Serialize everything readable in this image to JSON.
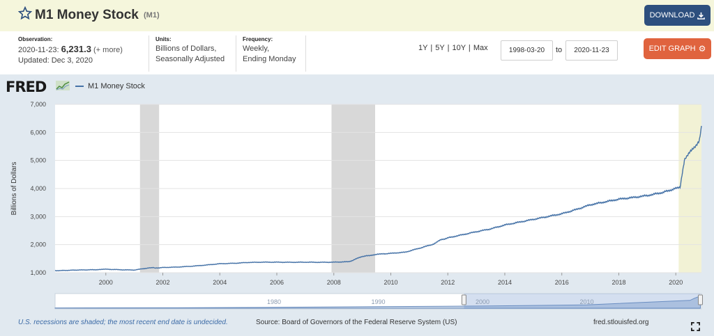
{
  "header": {
    "title": "M1 Money Stock",
    "code": "(M1)",
    "download_label": "DOWNLOAD",
    "icons": {
      "star": "star-outline-icon",
      "download": "download-icon",
      "edit": "gear-icon",
      "fullscreen": "fullscreen-icon"
    }
  },
  "meta": {
    "observation_label": "Observation:",
    "observation_date": "2020-11-23:",
    "observation_value": "6,231.3",
    "observation_more": "(+ more)",
    "updated": "Updated: Dec 3, 2020",
    "units_label": "Units:",
    "units_line1": "Billions of Dollars,",
    "units_line2": "Seasonally Adjusted",
    "frequency_label": "Frequency:",
    "frequency_line1": "Weekly,",
    "frequency_line2": "Ending Monday"
  },
  "controls": {
    "ranges": [
      "1Y",
      "5Y",
      "10Y",
      "Max"
    ],
    "start_date": "1998-03-20",
    "to_label": "to",
    "end_date": "2020-11-23",
    "edit_label": "EDIT GRAPH"
  },
  "graph": {
    "logo": "FRED",
    "legend": "M1 Money Stock",
    "footnote": "U.S. recessions are shaded; the most recent end date is undecided.",
    "source": "Source: Board of Governors of the Federal Reserve System (US)",
    "url": "fred.stlouisfed.org",
    "navigator_labels": [
      "1980",
      "1990",
      "2000",
      "2010"
    ]
  },
  "colors": {
    "line": "#4572a7",
    "recession": "#d8d8d8",
    "recent_band": "#f2f2d5",
    "title_bar": "#f5f6dc",
    "download_button": "#2d4f7e",
    "edit_button": "#e0633e",
    "panel": "#e1e9f0"
  },
  "chart_data": {
    "type": "line",
    "title": "",
    "xlabel": "",
    "ylabel": "Billions of Dollars",
    "ylim": [
      1000,
      7000
    ],
    "xlim": [
      1998.22,
      2020.9
    ],
    "yticks": [
      1000,
      2000,
      3000,
      4000,
      5000,
      6000,
      7000
    ],
    "ytick_labels": [
      "1,000",
      "2,000",
      "3,000",
      "4,000",
      "5,000",
      "6,000",
      "7,000"
    ],
    "xticks": [
      2000,
      2002,
      2004,
      2006,
      2008,
      2010,
      2012,
      2014,
      2016,
      2018,
      2020
    ],
    "xtick_labels": [
      "2000",
      "2002",
      "2004",
      "2006",
      "2008",
      "2010",
      "2012",
      "2014",
      "2016",
      "2018",
      "2020"
    ],
    "grid": true,
    "legend_position": "top-left",
    "recessions": [
      [
        2001.2,
        2001.87
      ],
      [
        2007.92,
        2009.45
      ]
    ],
    "recent_band": [
      2020.1,
      2020.9
    ],
    "series": [
      {
        "name": "M1 Money Stock",
        "x": [
          1998.22,
          1999.0,
          1999.8,
          2000.0,
          2000.5,
          2001.0,
          2001.5,
          2001.68,
          2001.72,
          2002.0,
          2002.5,
          2003.0,
          2003.5,
          2004.0,
          2004.5,
          2005.0,
          2005.5,
          2006.0,
          2006.5,
          2007.0,
          2007.5,
          2008.0,
          2008.5,
          2008.65,
          2008.75,
          2009.0,
          2009.3,
          2009.5,
          2010.0,
          2010.5,
          2011.0,
          2011.5,
          2011.7,
          2012.0,
          2012.5,
          2013.0,
          2013.5,
          2014.0,
          2014.5,
          2015.0,
          2015.5,
          2016.0,
          2016.5,
          2017.0,
          2017.5,
          2018.0,
          2018.5,
          2019.0,
          2019.5,
          2019.9,
          2020.15,
          2020.2,
          2020.27,
          2020.3,
          2020.4,
          2020.5,
          2020.6,
          2020.7,
          2020.8,
          2020.85,
          2020.9
        ],
        "values": [
          1070,
          1095,
          1110,
          1125,
          1105,
          1095,
          1170,
          1180,
          1160,
          1185,
          1200,
          1230,
          1270,
          1320,
          1335,
          1365,
          1375,
          1375,
          1370,
          1375,
          1370,
          1375,
          1390,
          1430,
          1480,
          1580,
          1620,
          1655,
          1690,
          1730,
          1870,
          2020,
          2150,
          2240,
          2350,
          2460,
          2560,
          2700,
          2800,
          2900,
          3000,
          3100,
          3250,
          3420,
          3520,
          3620,
          3680,
          3750,
          3850,
          3970,
          4050,
          4350,
          4800,
          5000,
          5150,
          5300,
          5400,
          5500,
          5650,
          5850,
          6231.3
        ]
      }
    ]
  }
}
